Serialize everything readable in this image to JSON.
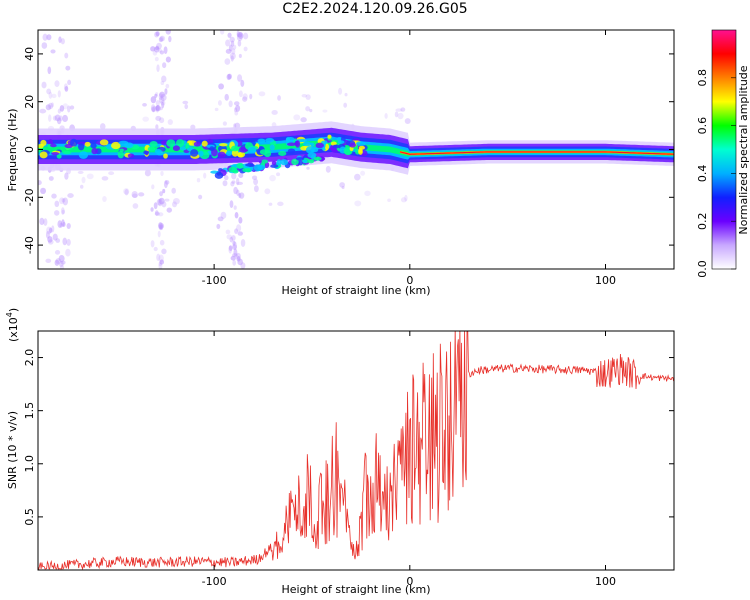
{
  "title": "C2E2.2024.120.09.26.G05",
  "chart_data": [
    {
      "type": "heatmap",
      "xlabel": "Height of straight line (km)",
      "ylabel": "Frequency (Hz)",
      "xlim": [
        -190,
        135
      ],
      "ylim": [
        -50,
        50
      ],
      "x_ticks": [
        -100,
        0,
        100
      ],
      "y_ticks": [
        40,
        20,
        0,
        -20,
        -40
      ],
      "colorbar": {
        "label": "Normalized spectral amplitude",
        "range": [
          0,
          1
        ],
        "ticks": [
          0.0,
          0.2,
          0.4,
          0.6,
          0.8
        ],
        "colors": [
          "#ffffff",
          "#c8a8ff",
          "#6a00ff",
          "#1020ff",
          "#00b0ff",
          "#00ffd0",
          "#00ff00",
          "#ffff00",
          "#ff8000",
          "#ff0000",
          "#ff1090"
        ]
      },
      "ridge": [
        {
          "x": -190,
          "y": 0
        },
        {
          "x": -150,
          "y": 0
        },
        {
          "x": -110,
          "y": 0
        },
        {
          "x": -70,
          "y": 1
        },
        {
          "x": -40,
          "y": 3
        },
        {
          "x": -25,
          "y": 1
        },
        {
          "x": -10,
          "y": 0
        },
        {
          "x": 0,
          "y": -2
        },
        {
          "x": 40,
          "y": -1
        },
        {
          "x": 100,
          "y": -1
        },
        {
          "x": 135,
          "y": -2
        }
      ],
      "side_branch": [
        {
          "x": -100,
          "y": -10
        },
        {
          "x": -80,
          "y": -7
        },
        {
          "x": -60,
          "y": -5
        },
        {
          "x": -45,
          "y": -3
        }
      ]
    },
    {
      "type": "line",
      "xlabel": "Height of straight line (km)",
      "ylabel": "SNR (10 * v/v)",
      "y_multiplier": "(x10",
      "y_multiplier_exp": "4",
      "xlim": [
        -190,
        135
      ],
      "ylim": [
        0,
        2.25
      ],
      "x_ticks": [
        -100,
        0,
        100
      ],
      "y_ticks": [
        "0.5",
        "1.0",
        "1.5",
        "2.0"
      ],
      "color": "#e8302a",
      "series": [
        {
          "values": [
            {
              "x": -190,
              "y": 0.02
            },
            {
              "x": -170,
              "y": 0.05
            },
            {
              "x": -150,
              "y": 0.08
            },
            {
              "x": -130,
              "y": 0.07
            },
            {
              "x": -110,
              "y": 0.08
            },
            {
              "x": -90,
              "y": 0.07
            },
            {
              "x": -78,
              "y": 0.1
            },
            {
              "x": -68,
              "y": 0.25
            },
            {
              "x": -60,
              "y": 0.6
            },
            {
              "x": -52,
              "y": 0.75
            },
            {
              "x": -45,
              "y": 0.6
            },
            {
              "x": -38,
              "y": 1.0
            },
            {
              "x": -32,
              "y": 0.5
            },
            {
              "x": -27,
              "y": 0.2
            },
            {
              "x": -22,
              "y": 0.9
            },
            {
              "x": -17,
              "y": 1.1
            },
            {
              "x": -12,
              "y": 0.7
            },
            {
              "x": -6,
              "y": 0.9
            },
            {
              "x": 0,
              "y": 1.2
            },
            {
              "x": 6,
              "y": 1.35
            },
            {
              "x": 14,
              "y": 1.45
            },
            {
              "x": 20,
              "y": 1.65
            },
            {
              "x": 26,
              "y": 1.82
            },
            {
              "x": 35,
              "y": 1.88
            },
            {
              "x": 50,
              "y": 1.9
            },
            {
              "x": 70,
              "y": 1.89
            },
            {
              "x": 90,
              "y": 1.88
            },
            {
              "x": 100,
              "y": 1.85
            },
            {
              "x": 108,
              "y": 1.9
            },
            {
              "x": 113,
              "y": 1.85
            },
            {
              "x": 118,
              "y": 1.83
            },
            {
              "x": 125,
              "y": 1.81
            },
            {
              "x": 135,
              "y": 1.8
            }
          ]
        }
      ]
    }
  ]
}
